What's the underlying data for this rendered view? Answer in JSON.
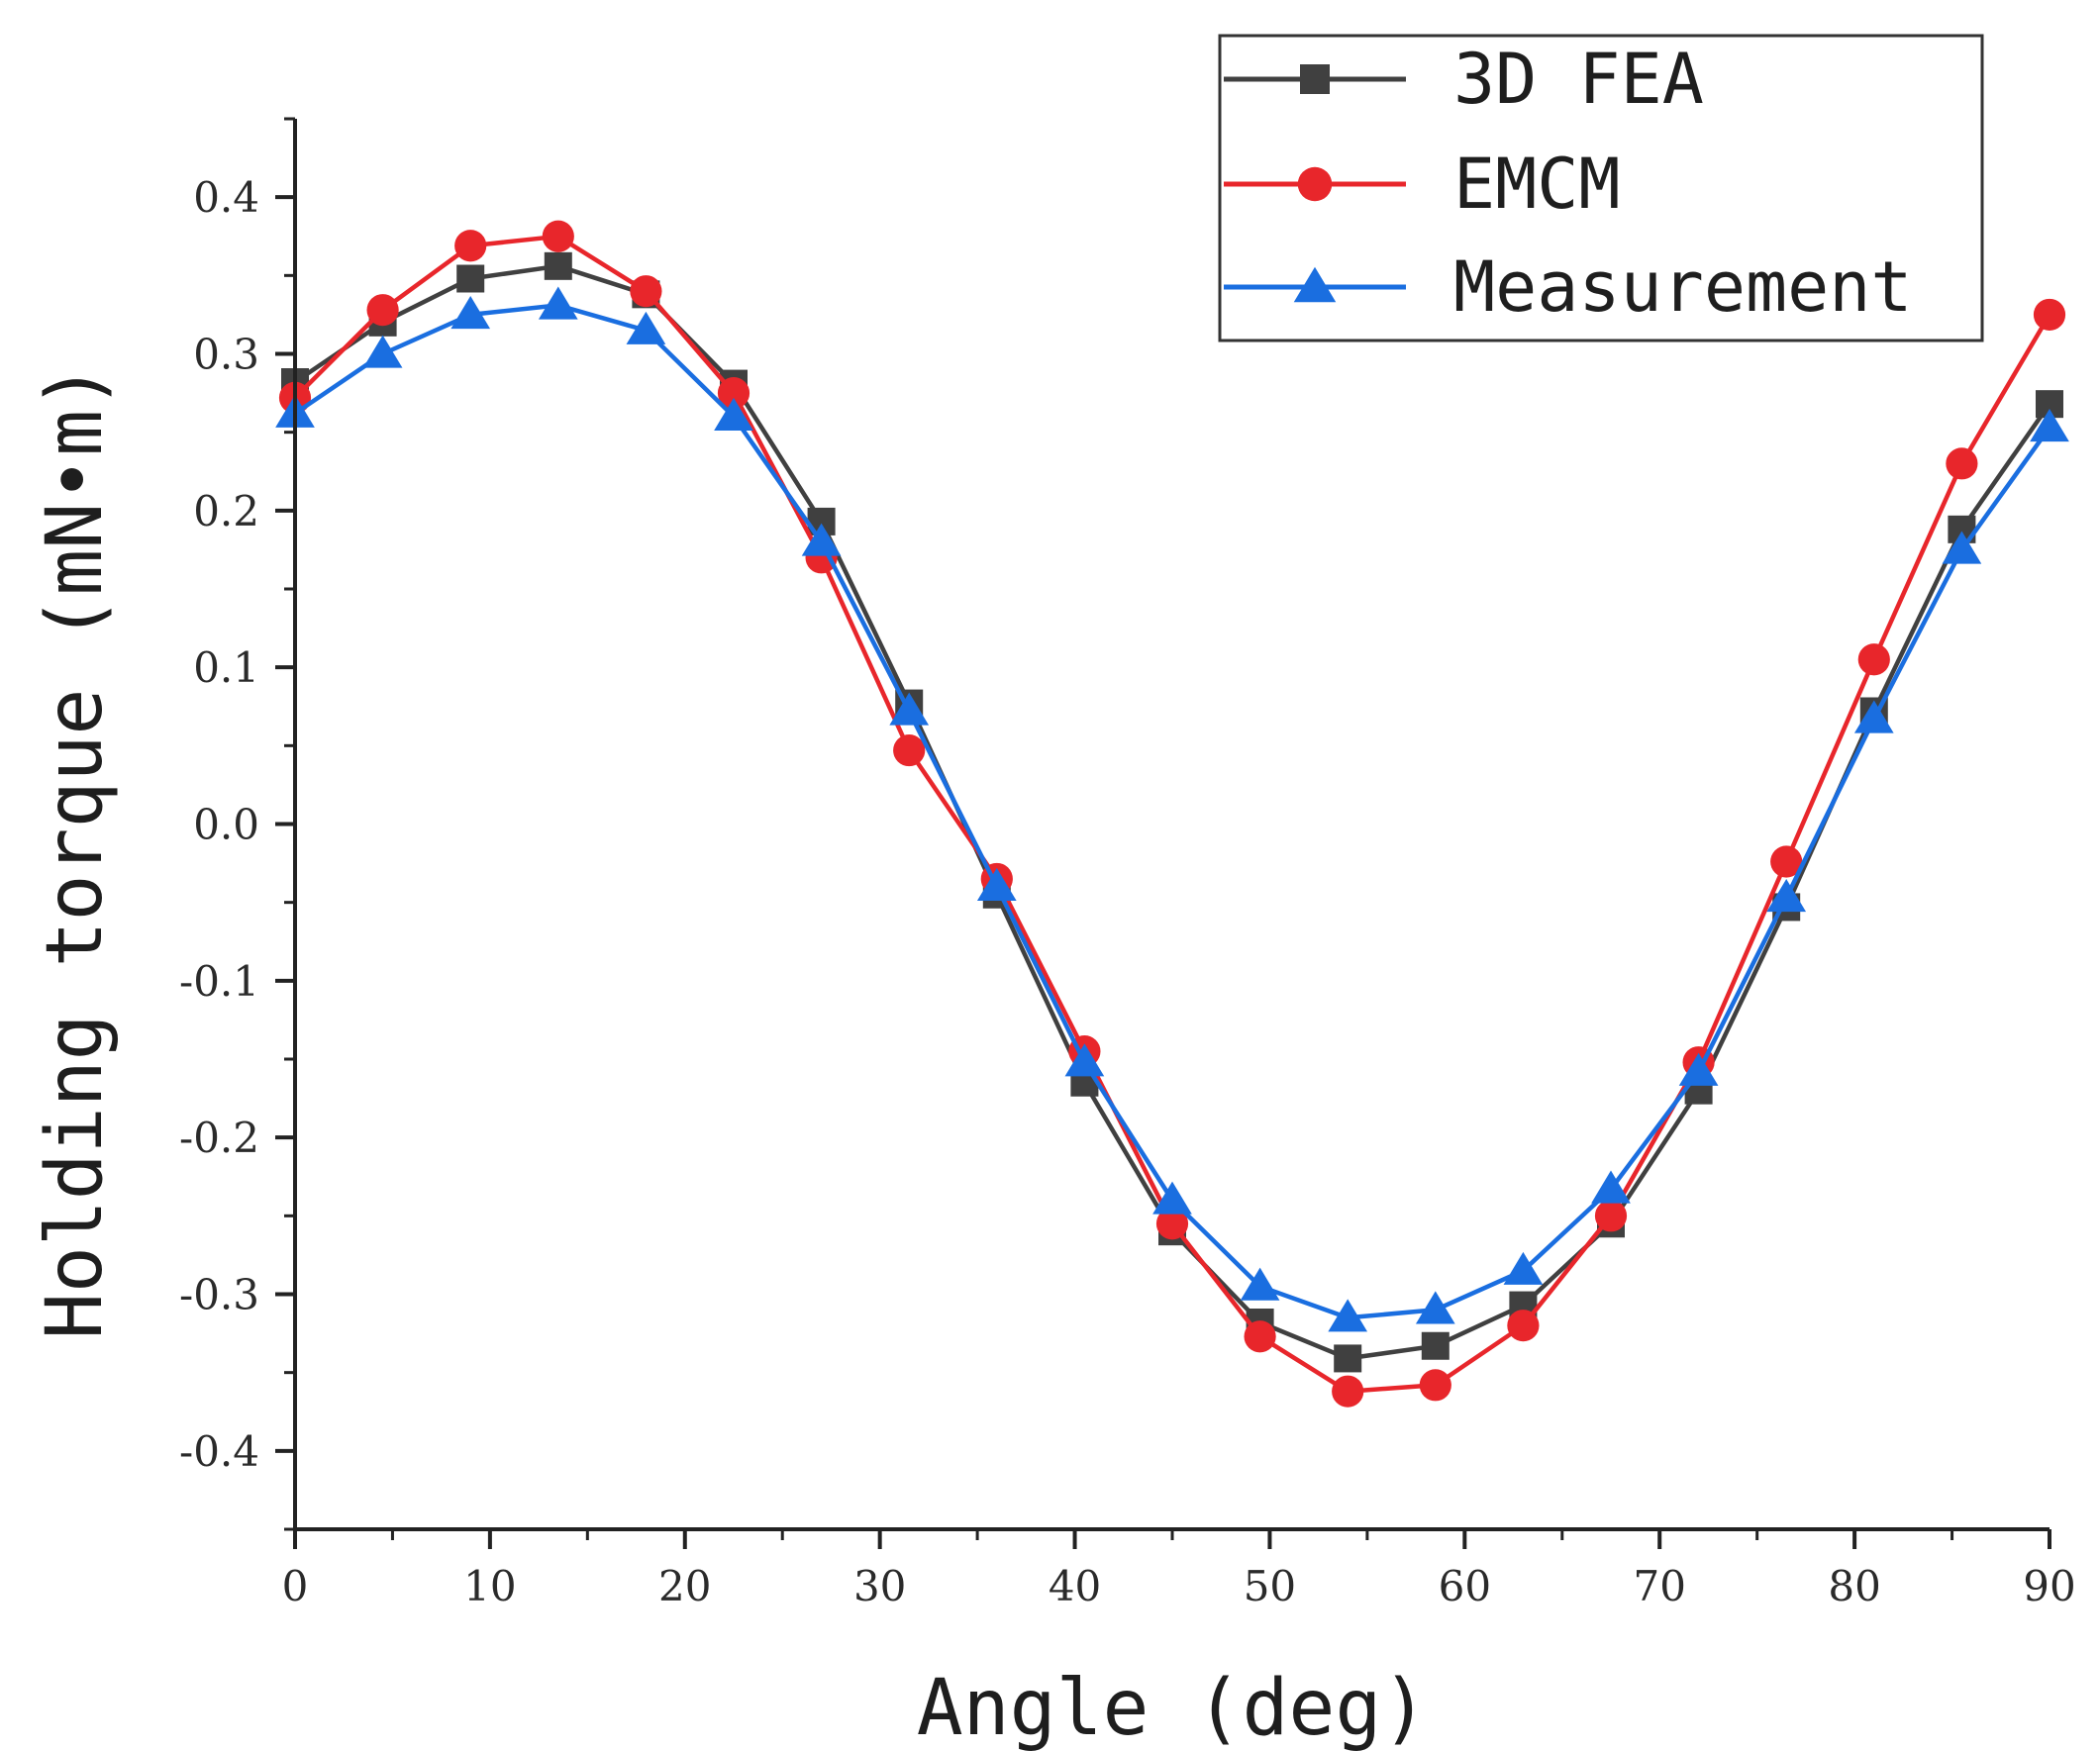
{
  "chart_data": {
    "type": "line",
    "title": "",
    "xlabel": "Angle (deg)",
    "ylabel": "Holding torque (mN•m)",
    "xlim": [
      0,
      90
    ],
    "ylim": [
      -0.45,
      0.45
    ],
    "xticks": [
      0,
      10,
      20,
      30,
      40,
      50,
      60,
      70,
      80,
      90
    ],
    "xtick_labels": [
      "0",
      "10",
      "20",
      "30",
      "40",
      "50",
      "60",
      "70",
      "80",
      "90"
    ],
    "yticks": [
      -0.4,
      -0.3,
      -0.2,
      -0.1,
      0.0,
      0.1,
      0.2,
      0.3,
      0.4
    ],
    "ytick_labels": [
      "-0.4",
      "-0.3",
      "-0.2",
      "-0.1",
      "0.0",
      "0.1",
      "0.2",
      "0.3",
      "0.4"
    ],
    "grid": false,
    "legend_position": "top-right",
    "x": [
      0,
      4.5,
      9,
      13.5,
      18,
      22.5,
      27,
      31.5,
      36,
      40.5,
      45,
      49.5,
      54,
      58.5,
      63,
      67.5,
      72,
      76.5,
      81,
      85.5,
      90
    ],
    "series": [
      {
        "name": "3D FEA",
        "color": "#404040",
        "marker": "square",
        "values": [
          0.282,
          0.32,
          0.348,
          0.356,
          0.338,
          0.281,
          0.193,
          0.077,
          -0.045,
          -0.165,
          -0.26,
          -0.318,
          -0.341,
          -0.333,
          -0.307,
          -0.255,
          -0.17,
          -0.053,
          0.072,
          0.188,
          0.268
        ]
      },
      {
        "name": "EMCM",
        "color": "#e8262b",
        "marker": "circle",
        "values": [
          0.272,
          0.328,
          0.369,
          0.375,
          0.34,
          0.275,
          0.17,
          0.047,
          -0.035,
          -0.145,
          -0.255,
          -0.327,
          -0.362,
          -0.358,
          -0.32,
          -0.25,
          -0.152,
          -0.024,
          0.105,
          0.23,
          0.325
        ]
      },
      {
        "name": "Measurement",
        "color": "#1a6ee0",
        "marker": "triangle",
        "values": [
          0.262,
          0.3,
          0.325,
          0.331,
          0.315,
          0.26,
          0.18,
          0.072,
          -0.04,
          -0.152,
          -0.24,
          -0.295,
          -0.315,
          -0.31,
          -0.285,
          -0.233,
          -0.158,
          -0.047,
          0.067,
          0.175,
          0.253
        ]
      }
    ]
  }
}
